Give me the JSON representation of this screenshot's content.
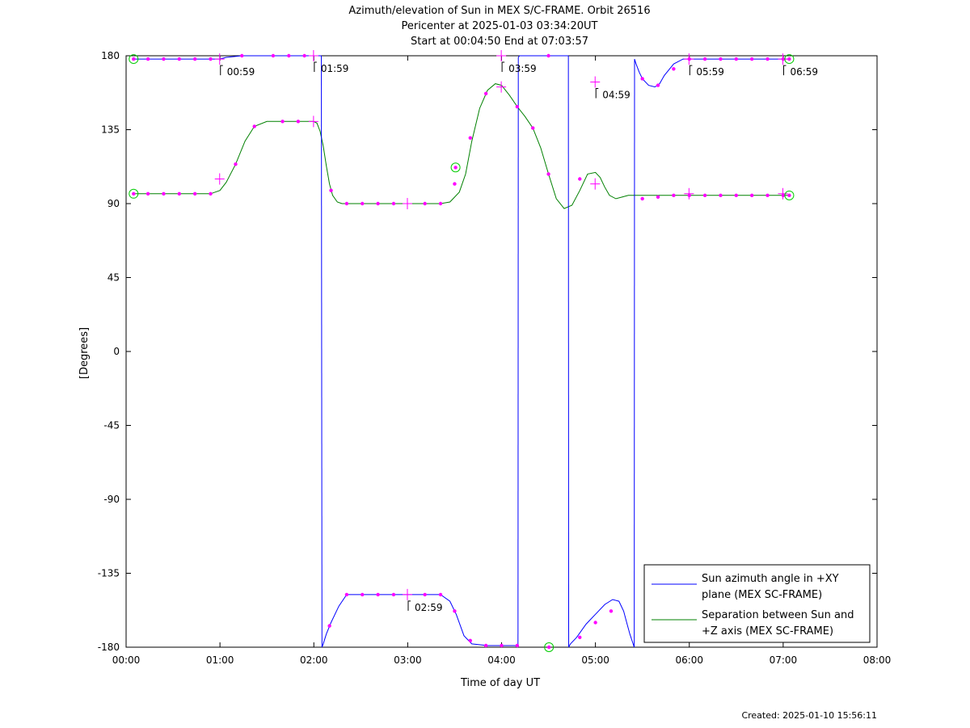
{
  "chart_data": {
    "type": "line",
    "title_lines": [
      "Azimuth/elevation of Sun in MEX S/C-FRAME.  Orbit 26516",
      "Pericenter at 2025-01-03 03:34:20UT",
      "Start at 00:04:50 End at 07:03:57"
    ],
    "xlabel": "Time of day UT",
    "ylabel": "[Degrees]",
    "xlim": [
      0,
      480
    ],
    "ylim": [
      -180,
      180
    ],
    "x_ticks": [
      0,
      60,
      120,
      180,
      240,
      300,
      360,
      420,
      480
    ],
    "x_tick_labels": [
      "00:00",
      "01:00",
      "02:00",
      "03:00",
      "04:00",
      "05:00",
      "06:00",
      "07:00",
      "08:00"
    ],
    "y_ticks": [
      180,
      135,
      90,
      45,
      0,
      -45,
      -90,
      -135,
      -180
    ],
    "y_tick_labels": [
      "180",
      "135",
      "90",
      "45",
      "0",
      "-45",
      "-90",
      "-135",
      "-180"
    ],
    "colors": {
      "azimuth": "#0000ff",
      "separation": "#008000",
      "markers": "#ff00ff",
      "circles": "#00cc00",
      "frame": "#000000"
    },
    "series": [
      {
        "name": "Sun azimuth angle in +XY plane (MEX SC-FRAME)",
        "key": "azimuth",
        "segments": [
          {
            "x": [
              4.8,
              14,
              24,
              34,
              44,
              54,
              59.8,
              64,
              74,
              84,
              94,
              104,
              114,
              119.8,
              124.8
            ],
            "y": [
              178,
              178,
              178,
              178,
              178,
              178,
              178,
              179,
              180,
              180,
              180,
              180,
              180,
              180,
              180
            ]
          },
          {
            "x": [
              125.2,
              126,
              128,
              131,
              136,
              141,
              151,
              161,
              171,
              179.8,
              191,
              201,
              207,
              211,
              216,
              221,
              231,
              241,
              249,
              250.5
            ],
            "y": [
              -180,
              -178,
              -172,
              -165,
              -155,
              -148,
              -148,
              -148,
              -148,
              -148,
              -148,
              -148,
              -152,
              -160,
              -173,
              -178,
              -179,
              -179,
              -179,
              -180
            ]
          },
          {
            "x": [
              250.7,
              251.5,
              254,
              260,
              270,
              280,
              282.7
            ],
            "y": [
              179,
              180,
              180,
              180,
              180,
              180,
              180
            ]
          },
          {
            "x": [
              282.9,
              284,
              288,
              294,
              300,
              306,
              311,
              315,
              318,
              320,
              322,
              324.8
            ],
            "y": [
              -180,
              -178,
              -174,
              -166,
              -160,
              -154,
              -151,
              -152,
              -158,
              -165,
              -172,
              -180
            ]
          },
          {
            "x": [
              325.0,
              326,
              328,
              330,
              334,
              338,
              341,
              344,
              350,
              356,
              370,
              400,
              423.5
            ],
            "y": [
              178,
              175,
              170,
              166,
              162,
              161,
              163,
              168,
              175,
              178,
              178,
              178,
              178
            ]
          }
        ],
        "dots_x": [
          14,
          24,
          34,
          44,
          54,
          74,
          94,
          104,
          114,
          130,
          141,
          151,
          161,
          171,
          191,
          201,
          210,
          220,
          230,
          240,
          250,
          270,
          290,
          300,
          310,
          330,
          340,
          350,
          360,
          370,
          380,
          390,
          400,
          410,
          420
        ],
        "dots_y": [
          178,
          178,
          178,
          178,
          178,
          180,
          180,
          180,
          180,
          -167,
          -148,
          -148,
          -148,
          -148,
          -148,
          -148,
          -158,
          -176,
          -179,
          -179,
          -179,
          180,
          -174,
          -165,
          -158,
          166,
          162,
          172,
          178,
          178,
          178,
          178,
          178,
          178,
          178
        ],
        "crosses_x": [
          59.8,
          119.8,
          179.8,
          239.8,
          299.8,
          359.8,
          419.8
        ],
        "crosses_y": [
          178,
          180,
          -148,
          180,
          164,
          178,
          178
        ],
        "circles_x": [
          4.8,
          270.3,
          423.9
        ],
        "circles_y": [
          178,
          -180,
          178
        ]
      },
      {
        "name": "Separation between Sun and +Z axis (MEX SC-FRAME)",
        "key": "separation",
        "x": [
          4.8,
          14,
          24,
          34,
          44,
          54,
          60,
          64,
          70,
          76,
          82,
          90,
          100,
          110,
          119.8,
          122,
          124,
          126,
          128,
          130,
          132,
          135,
          138,
          141,
          146,
          151,
          161,
          171,
          181,
          191,
          201,
          207,
          213,
          217,
          221,
          226,
          231,
          236,
          240,
          245,
          250,
          255,
          260,
          265,
          270,
          275,
          280,
          285,
          290,
          295,
          300,
          303,
          306,
          309,
          313,
          317,
          321,
          325,
          330,
          335,
          345,
          360,
          380,
          400,
          423.5
        ],
        "y": [
          96,
          96,
          96,
          96,
          96,
          96,
          98,
          103,
          114,
          128,
          137,
          140,
          140,
          140,
          140,
          139,
          134,
          125,
          113,
          102,
          95,
          91,
          90,
          90,
          90,
          90,
          90,
          90,
          90,
          90,
          90,
          91,
          97,
          108,
          128,
          148,
          159,
          163,
          162,
          156,
          149,
          143,
          136,
          124,
          108,
          93,
          87,
          89,
          98,
          108,
          109,
          106,
          100,
          95,
          93,
          94,
          95,
          95,
          95,
          95,
          95,
          95,
          95,
          95,
          95
        ],
        "dots_x": [
          14,
          24,
          34,
          44,
          54,
          70,
          82,
          100,
          110,
          131,
          141,
          151,
          161,
          171,
          191,
          201,
          210,
          220,
          230,
          250,
          260,
          270,
          290,
          330,
          340,
          350,
          360,
          370,
          380,
          390,
          400,
          410,
          420
        ],
        "dots_y": [
          96,
          96,
          96,
          96,
          96,
          114,
          137,
          140,
          140,
          98,
          90,
          90,
          90,
          90,
          90,
          90,
          102,
          130,
          157,
          149,
          136,
          108,
          105,
          93,
          94,
          95,
          95,
          95,
          95,
          95,
          95,
          95,
          95
        ],
        "crosses_x": [
          59.8,
          119.8,
          179.8,
          239.8,
          299.8,
          359.8,
          419.8
        ],
        "crosses_y": [
          105,
          140,
          90,
          161,
          102,
          96,
          96
        ],
        "circles_x": [
          4.8,
          210.6,
          423.9
        ],
        "circles_y": [
          96,
          112,
          95
        ]
      }
    ],
    "annotations": [
      {
        "text": "00:59",
        "x": 59.8,
        "y": 178
      },
      {
        "text": "01:59",
        "x": 119.8,
        "y": 180
      },
      {
        "text": "02:59",
        "x": 179.8,
        "y": -148
      },
      {
        "text": "03:59",
        "x": 239.8,
        "y": 180
      },
      {
        "text": "04:59",
        "x": 299.8,
        "y": 164
      },
      {
        "text": "05:59",
        "x": 359.8,
        "y": 178
      },
      {
        "text": "06:59",
        "x": 419.8,
        "y": 178
      }
    ],
    "legend_placement": "bottom-right",
    "legend": {
      "azimuth_line1": "Sun azimuth angle in +XY",
      "azimuth_line2": "plane (MEX SC-FRAME)",
      "separation_line1": "Separation between Sun and",
      "separation_line2": "+Z axis (MEX SC-FRAME)"
    }
  },
  "footer": {
    "created": "Created: 2025-01-10 15:56:11"
  }
}
